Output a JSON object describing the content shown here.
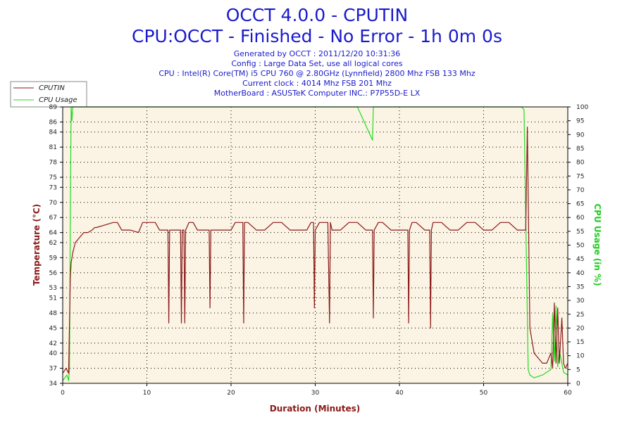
{
  "titles": {
    "line1": "OCCT 4.0.0 - CPUTIN",
    "line2": "CPU:OCCT - Finished - No Error - 1h 0m 0s"
  },
  "info_lines": [
    "Generated by OCCT : 2011/12/20 10:31:36",
    "Config : Large Data Set, use all logical cores",
    "CPU : Intel(R) Core(TM) i5 CPU 760 @ 2.80GHz (Lynnfield) 2800 Mhz FSB 133 Mhz",
    "Current clock : 4014 Mhz FSB 201 Mhz",
    "MotherBoard : ASUSTeK Computer INC.: P7P55D-E LX"
  ],
  "colors": {
    "cputin": "#8b1a1a",
    "cpu_usage": "#22dd22",
    "plot_bg": "#fbf3e3",
    "title": "#1a1acc",
    "grid": "#000000"
  },
  "chart_data": {
    "type": "line",
    "title": "OCCT 4.0.0 - CPUTIN",
    "xlabel": "Duration (Minutes)",
    "ylabel_left": "Temperature (°C)",
    "ylabel_right": "CPU Usage (in %)",
    "xlim": [
      0,
      60
    ],
    "ylim_left": [
      34,
      89
    ],
    "ylim_right": [
      0,
      100
    ],
    "x_ticks": [
      0,
      10,
      20,
      30,
      40,
      50,
      60
    ],
    "y_left_ticks": [
      34,
      37,
      40,
      42,
      45,
      48,
      51,
      53,
      56,
      59,
      62,
      64,
      67,
      70,
      73,
      75,
      78,
      81,
      84,
      86,
      89
    ],
    "y_right_ticks": [
      0,
      5,
      10,
      15,
      20,
      25,
      30,
      35,
      40,
      45,
      50,
      55,
      60,
      65,
      70,
      75,
      80,
      85,
      90,
      95,
      100
    ],
    "grid": true,
    "legend_position": "top-left",
    "series": [
      {
        "name": "CPUTIN",
        "axis": "left",
        "x": [
          0,
          0.4,
          0.7,
          0.9,
          1.0,
          1.2,
          1.5,
          2.0,
          2.5,
          3.0,
          3.5,
          3.8,
          4.0,
          5.0,
          6.0,
          6.5,
          7.0,
          8.0,
          9.0,
          9.5,
          10.0,
          11.0,
          11.5,
          12.0,
          12.5,
          12.6,
          12.7,
          13.5,
          14.0,
          14.1,
          14.2,
          14.4,
          14.5,
          14.6,
          15.0,
          15.5,
          16.0,
          17.0,
          17.4,
          17.5,
          17.6,
          18.0,
          19.0,
          20.0,
          20.5,
          21.0,
          21.4,
          21.5,
          21.6,
          22.0,
          23.0,
          24.0,
          25.0,
          26.0,
          27.0,
          28.0,
          29.0,
          29.5,
          29.8,
          29.9,
          30.0,
          30.5,
          31.0,
          31.5,
          31.7,
          31.8,
          32.0,
          33.0,
          34.0,
          35.0,
          36.0,
          36.8,
          36.9,
          37.0,
          37.5,
          38.0,
          39.0,
          40.0,
          41.0,
          41.1,
          41.2,
          41.5,
          42.0,
          43.0,
          43.6,
          43.7,
          43.8,
          44.0,
          45.0,
          46.0,
          47.0,
          48.0,
          49.0,
          50.0,
          51.0,
          52.0,
          53.0,
          54.0,
          54.8,
          55.0,
          55.2,
          55.5,
          55.8,
          56.0,
          56.5,
          57.0,
          57.5,
          58.0,
          58.2,
          58.4,
          58.6,
          58.8,
          59.0,
          59.3,
          59.5,
          59.7,
          60.0
        ],
        "values": [
          36,
          37,
          36,
          55,
          58,
          60,
          62,
          63,
          64,
          64,
          64.5,
          65,
          65,
          65.5,
          66,
          66,
          64.5,
          64.5,
          64,
          66,
          66,
          66,
          64.5,
          64.5,
          64.5,
          46,
          64.5,
          64.5,
          64.5,
          46,
          64.5,
          64.5,
          46,
          64.5,
          66,
          66,
          64.5,
          64.5,
          64.5,
          49,
          64.5,
          64.5,
          64.5,
          64.5,
          66,
          66,
          66,
          46,
          66,
          66,
          64.5,
          64.5,
          66,
          66,
          64.5,
          64.5,
          64.5,
          66,
          66,
          49,
          64.5,
          66,
          66,
          66,
          46,
          66,
          64.5,
          64.5,
          66,
          66,
          64.5,
          64.5,
          47,
          64.5,
          66,
          66,
          64.5,
          64.5,
          64.5,
          46,
          64.5,
          66,
          66,
          64.5,
          64.5,
          45,
          64.5,
          66,
          66,
          64.5,
          64.5,
          66,
          66,
          64.5,
          64.5,
          66,
          66,
          64.5,
          64.5,
          64.5,
          85,
          45,
          42,
          40,
          39,
          38,
          38,
          40,
          37,
          50,
          38,
          49,
          38,
          47,
          38,
          37,
          38
        ]
      },
      {
        "name": "CPU Usage",
        "axis": "right",
        "x": [
          0,
          0.5,
          0.7,
          0.8,
          0.9,
          1.0,
          1.1,
          1.2,
          2.0,
          5.0,
          10.0,
          15.0,
          20.0,
          25.0,
          30.0,
          35.0,
          36.8,
          36.9,
          37.0,
          40.0,
          45.0,
          50.0,
          54.5,
          54.8,
          55.0,
          55.3,
          55.5,
          56.0,
          57.0,
          57.5,
          58.0,
          58.2,
          58.4,
          58.6,
          58.8,
          59.0,
          59.5,
          60.0
        ],
        "values": [
          1,
          3,
          1,
          5,
          60,
          100,
          95,
          100,
          100,
          100,
          100,
          100,
          100,
          100,
          100,
          100,
          88,
          100,
          100,
          100,
          100,
          100,
          100,
          99,
          60,
          5,
          3,
          2,
          3,
          4,
          5,
          25,
          8,
          28,
          6,
          12,
          4,
          3
        ]
      }
    ]
  },
  "legend": [
    {
      "label": "CPUTIN"
    },
    {
      "label": "CPU Usage"
    }
  ]
}
